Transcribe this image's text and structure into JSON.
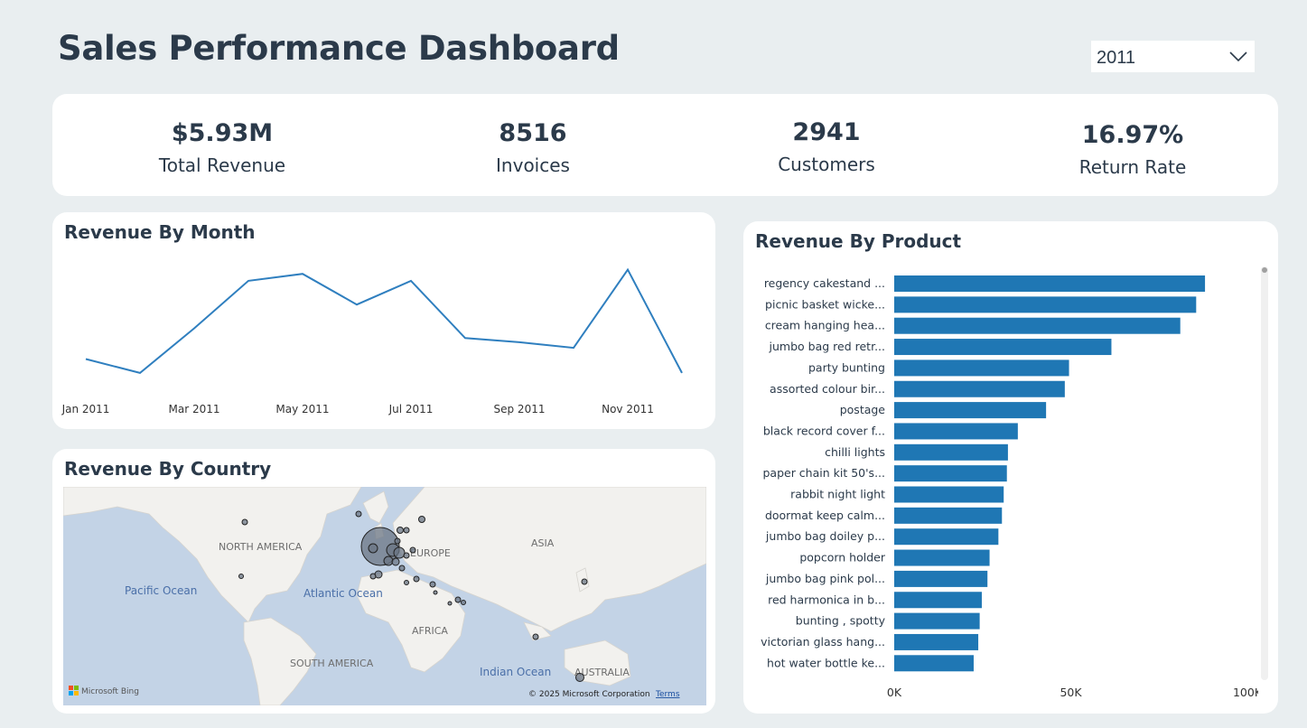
{
  "title": "Sales Performance Dashboard",
  "year_filter": {
    "value": "2011"
  },
  "kpis": [
    {
      "value": "$5.93M",
      "label": "Total Revenue"
    },
    {
      "value": "8516",
      "label": "Invoices"
    },
    {
      "value": "2941",
      "label": "Customers"
    },
    {
      "value": "16.97%",
      "label": "Return Rate"
    }
  ],
  "revenue_by_month": {
    "title": "Revenue By Month"
  },
  "revenue_by_country": {
    "title": "Revenue By Country",
    "labels": {
      "north_america": "NORTH AMERICA",
      "europe": "EUROPE",
      "asia": "ASIA",
      "africa": "AFRICA",
      "south_america": "SOUTH AMERICA",
      "australia": "AUSTRALIA",
      "pacific": "Pacific Ocean",
      "atlantic": "Atlantic Ocean",
      "indian": "Indian Ocean"
    },
    "bing": "Microsoft Bing",
    "copyright": "© 2025 Microsoft Corporation",
    "terms": "Terms"
  },
  "revenue_by_product": {
    "title": "Revenue By Product"
  },
  "colors": {
    "line": "#2f7fbf",
    "bar": "#1f77b4",
    "text": "#2b3a4a",
    "water": "#c3d3e6",
    "land": "#f2f1ee"
  },
  "chart_data": [
    {
      "type": "line",
      "title": "Revenue By Month",
      "x": [
        "Jan 2011",
        "Feb 2011",
        "Mar 2011",
        "Apr 2011",
        "May 2011",
        "Jun 2011",
        "Jul 2011",
        "Aug 2011",
        "Sep 2011",
        "Oct 2011",
        "Nov 2011",
        "Dec 2011"
      ],
      "x_tick_labels": [
        "Jan 2011",
        "Mar 2011",
        "May 2011",
        "Jul 2011",
        "Sep 2011",
        "Nov 2011"
      ],
      "series": [
        {
          "values": [
            470,
            420,
            580,
            750,
            775,
            665,
            750,
            545,
            530,
            510,
            790,
            420
          ]
        }
      ],
      "ylim": [
        300,
        850
      ],
      "grid": false
    },
    {
      "type": "bar",
      "orientation": "horizontal",
      "title": "Revenue By Product",
      "categories": [
        "regency cakestand ...",
        "picnic basket wicke...",
        "cream hanging hea...",
        "jumbo bag red retr...",
        "party bunting",
        "assorted colour bir...",
        "postage",
        "black record cover f...",
        "chilli lights",
        "paper chain kit 50's...",
        "rabbit night light",
        "doormat keep calm...",
        "jumbo bag doiley p...",
        "popcorn holder",
        "jumbo bag pink pol...",
        "red harmonica in b...",
        "bunting , spotty",
        "victorian glass hang...",
        "hot water bottle ke..."
      ],
      "values": [
        88000,
        85500,
        81000,
        61500,
        49500,
        48300,
        43000,
        35000,
        32200,
        31900,
        31000,
        30500,
        29500,
        27000,
        26400,
        24800,
        24200,
        23800,
        22500
      ],
      "x_tick_labels": [
        "0K",
        "50K",
        "100K"
      ],
      "xlim": [
        0,
        100000
      ],
      "grid": false
    }
  ]
}
